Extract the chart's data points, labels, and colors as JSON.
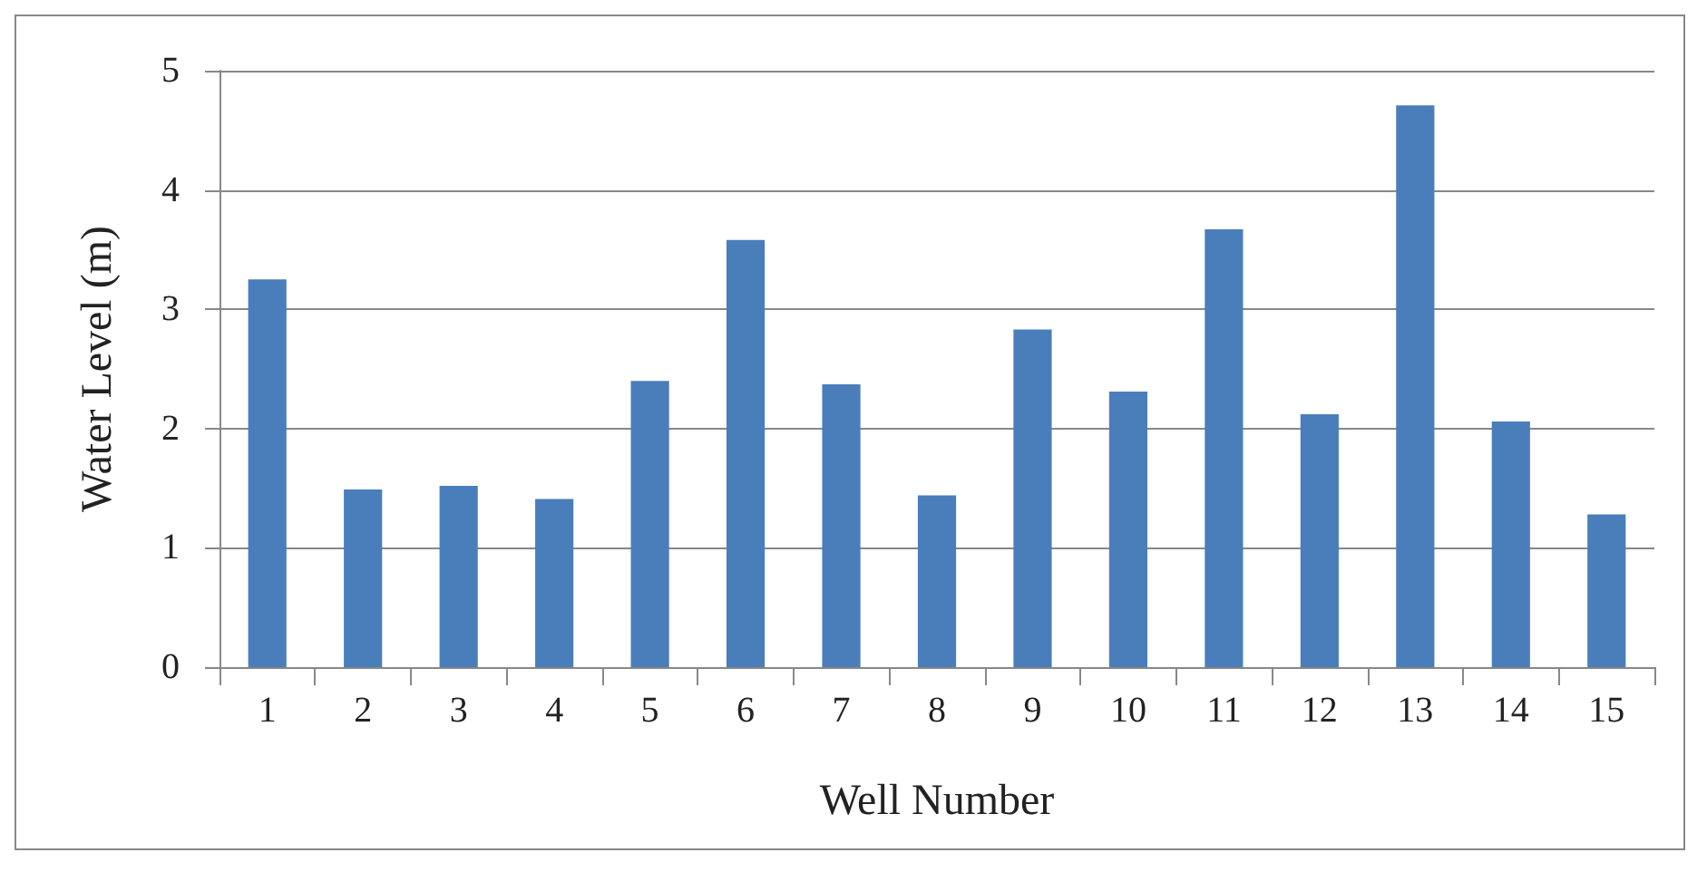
{
  "chart_data": {
    "type": "bar",
    "xlabel": "Well Number",
    "ylabel": "Water Level (m)",
    "categories": [
      "1",
      "2",
      "3",
      "4",
      "5",
      "6",
      "7",
      "8",
      "9",
      "10",
      "11",
      "12",
      "13",
      "14",
      "15"
    ],
    "values": [
      3.25,
      1.49,
      1.52,
      1.41,
      2.4,
      3.58,
      2.37,
      1.44,
      2.83,
      2.31,
      3.67,
      2.12,
      4.71,
      2.06,
      1.28
    ],
    "color": "#4a7ebb",
    "ylim": [
      0,
      5
    ],
    "yticks": [
      0,
      1,
      2,
      3,
      4,
      5
    ],
    "grid": "y"
  }
}
